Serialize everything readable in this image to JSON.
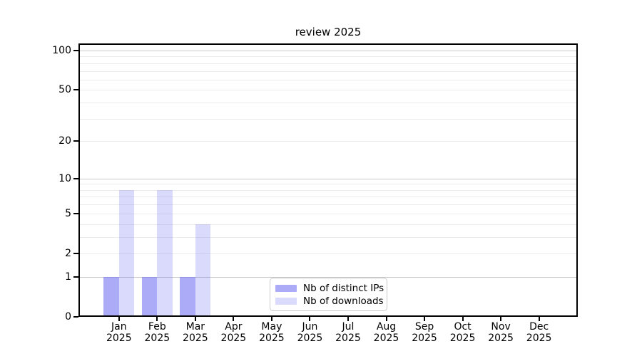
{
  "title": "review 2025",
  "chart_data": {
    "type": "bar",
    "title": "review 2025",
    "categories": [
      "Jan 2025",
      "Feb 2025",
      "Mar 2025",
      "Apr 2025",
      "May 2025",
      "Jun 2025",
      "Jul 2025",
      "Aug 2025",
      "Sep 2025",
      "Oct 2025",
      "Nov 2025",
      "Dec 2025"
    ],
    "series": [
      {
        "name": "Nb of distinct IPs",
        "values": [
          1,
          1,
          1,
          0,
          0,
          0,
          0,
          0,
          0,
          0,
          0,
          0
        ],
        "color": "rgba(102,102,242,0.55)"
      },
      {
        "name": "Nb of downloads",
        "values": [
          8,
          8,
          4,
          0,
          0,
          0,
          0,
          0,
          0,
          0,
          0,
          0
        ],
        "color": "rgba(102,102,242,0.24)"
      }
    ],
    "xlabel": "",
    "ylabel": "",
    "yscale": "log1p",
    "ylim": [
      0,
      112
    ],
    "yticks": [
      0,
      1,
      2,
      5,
      10,
      20,
      50,
      100
    ],
    "minor_yticks": [
      3,
      4,
      6,
      7,
      8,
      9,
      30,
      40,
      60,
      70,
      80,
      90
    ],
    "grid": "horizontal",
    "legend_position": "inside-bottom-center"
  },
  "colors": {
    "background": "#ffffff",
    "axis": "#000000",
    "grid_major": "#c8c8c8",
    "grid_minor": "#ebebeb",
    "tick_text": "#000000",
    "legend_border": "#cbcbcb"
  }
}
